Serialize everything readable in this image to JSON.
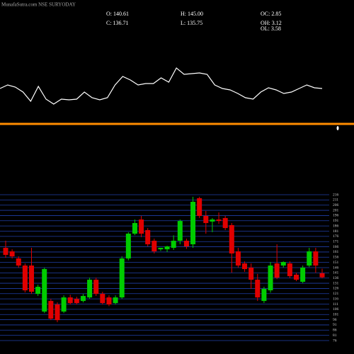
{
  "header": {
    "source": "MunafaSutra.com NSE SURYODAY",
    "stats": [
      [
        "O: 140.61",
        "H: 145.00",
        "OC: 2.85"
      ],
      [
        "C: 136.71",
        "L: 135.75",
        "OH: 3.12",
        "OL: 3.58"
      ]
    ]
  },
  "chart_data": [
    {
      "type": "line",
      "color": "#ffffff",
      "values": [
        50,
        55,
        52,
        45,
        32,
        53,
        35,
        28,
        35,
        34,
        35,
        45,
        37,
        34,
        37,
        55,
        67,
        62,
        55,
        57,
        57,
        65,
        59,
        79,
        70,
        71,
        72,
        70,
        55,
        50,
        48,
        43,
        37,
        35,
        45,
        51,
        48,
        43,
        45,
        50,
        55,
        51,
        50
      ]
    },
    {
      "type": "candlestick",
      "up_color": "#00cc00",
      "down_color": "#e00000",
      "grid_color": "#1f3fa8",
      "open": [
        165,
        161.6,
        154.8,
        148,
        148,
        120.8,
        103.8,
        114,
        110.6,
        103.8,
        117.4,
        116,
        114,
        117.4,
        134.4,
        120.8,
        117.4,
        112,
        117.4,
        154.8,
        178.6,
        192.2,
        182,
        171.8,
        163.6,
        163.6,
        165,
        171.8,
        171.8,
        168.4,
        212.6,
        195.6,
        190.2,
        192.2,
        193.6,
        186.8,
        161.6,
        150,
        146,
        134.4,
        114,
        124.2,
        150,
        148,
        150,
        139.2,
        132.4,
        148,
        161.6,
        140.61
      ],
      "high": [
        171.8,
        163.6,
        156.8,
        150,
        165,
        129.6,
        146,
        116,
        112.6,
        119.4,
        120,
        118,
        120.8,
        136.4,
        136.4,
        122.8,
        119.4,
        119.4,
        156.8,
        180,
        192.2,
        195.6,
        184,
        173.8,
        165,
        167,
        177,
        192.2,
        173.8,
        214,
        214,
        200.4,
        193.6,
        199,
        195.6,
        188.8,
        165,
        152,
        150,
        140,
        127.6,
        151.4,
        168.4,
        152,
        152,
        141,
        148,
        165,
        165,
        145
      ],
      "low": [
        155.4,
        154.8,
        146,
        122.2,
        120.8,
        118.8,
        102.4,
        95.6,
        93.6,
        102.4,
        110.6,
        110.6,
        112.6,
        116,
        118.8,
        110.6,
        109,
        110.6,
        116,
        153,
        177.2,
        175.2,
        166.4,
        159.6,
        162,
        161,
        163,
        168.4,
        164,
        165,
        193.6,
        178.6,
        180,
        188,
        182,
        141.2,
        146,
        142,
        125.6,
        114,
        112,
        122,
        135,
        146,
        136,
        133,
        131,
        146.5,
        141,
        135.75
      ],
      "close": [
        158.2,
        156.8,
        148,
        124.2,
        122.8,
        127.6,
        144.6,
        97,
        95.6,
        117.4,
        112,
        112,
        118.8,
        134.4,
        120.8,
        112,
        110.6,
        117.4,
        154.8,
        178.6,
        188.8,
        178.6,
        168.4,
        161.6,
        165,
        166.4,
        171.8,
        190.8,
        166.4,
        209.2,
        195.6,
        188.8,
        192.2,
        190.8,
        184,
        159.6,
        148,
        144.6,
        134.4,
        117.4,
        125.6,
        148,
        136.4,
        151.4,
        137.8,
        134.4,
        146,
        161.6,
        148,
        136.71
      ],
      "ylim": [
        76,
        216
      ],
      "yticks": [
        216,
        211,
        206,
        201,
        196,
        191,
        186,
        181,
        176,
        171,
        166,
        161,
        156,
        151,
        146,
        141,
        136,
        131,
        126,
        121,
        116,
        111,
        106,
        101,
        96,
        91,
        86,
        81,
        76
      ]
    }
  ]
}
